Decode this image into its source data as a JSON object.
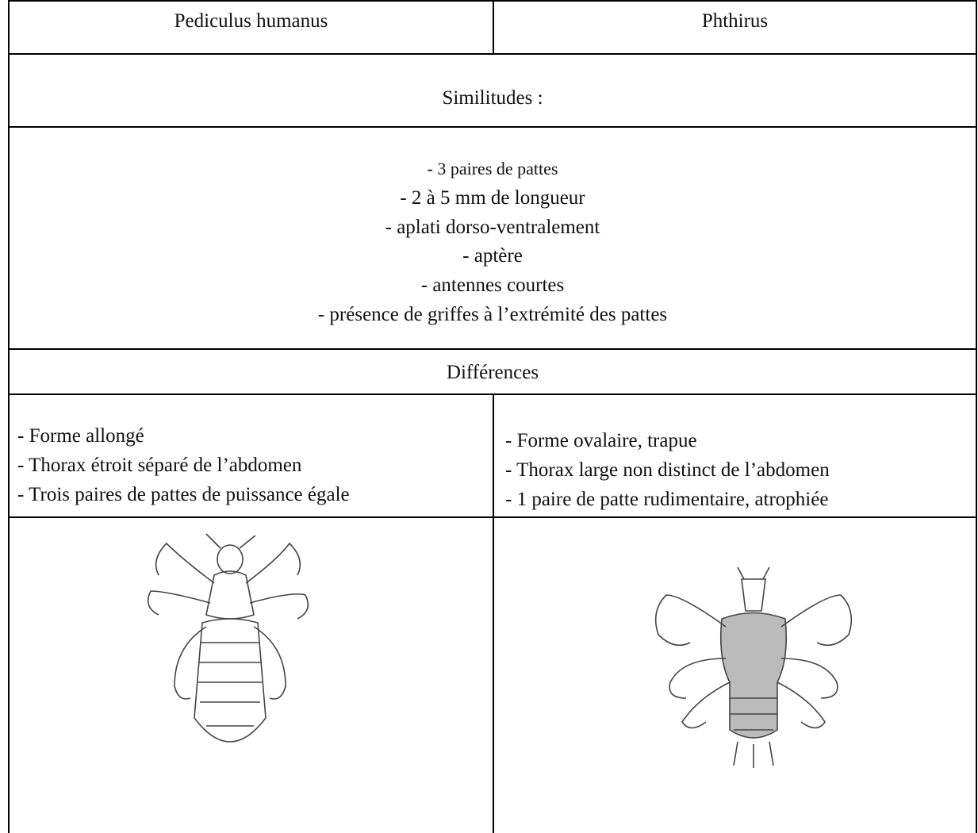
{
  "table": {
    "header": [
      "Pediculus humanus",
      "Phthirus"
    ],
    "similarities_title": "Similitudes :",
    "similarities": [
      "- 3 paires de pattes",
      "- 2 à 5 mm de longueur",
      "- aplati dorso-ventralement",
      "- aptère",
      "- antennes courtes",
      "- présence de griffes à l’extrémité des pattes"
    ],
    "differences_title": "Différences",
    "differences": [
      [
        "- Forme allongé",
        "- Thorax étroit séparé de l’abdomen",
        "- Trois paires de pattes de puissance égale"
      ],
      [
        "- Forme ovalaire, trapue",
        "- Thorax large non distinct de l’abdomen",
        "- 1 paire de patte rudimentaire, atrophiée"
      ]
    ]
  }
}
